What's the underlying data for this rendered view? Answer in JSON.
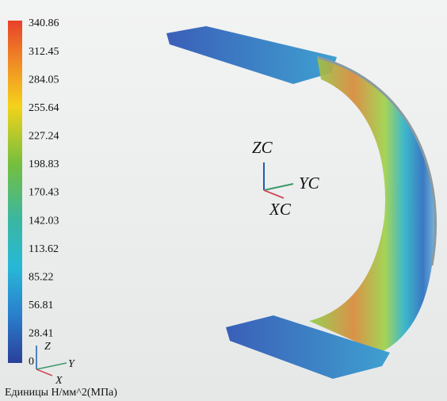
{
  "legend": {
    "labels": [
      "340.86",
      "312.45",
      "284.05",
      "255.64",
      "227.24",
      "198.83",
      "170.43",
      "142.03",
      "113.62",
      "85.22",
      "56.81",
      "28.41",
      "0"
    ],
    "units": "Единицы  Н/мм^2(МПа)"
  },
  "triad": {
    "z": "ZC",
    "y": "YC",
    "x": "XC"
  },
  "small_triad": {
    "z": "Z",
    "y": "Y",
    "x": "X"
  }
}
